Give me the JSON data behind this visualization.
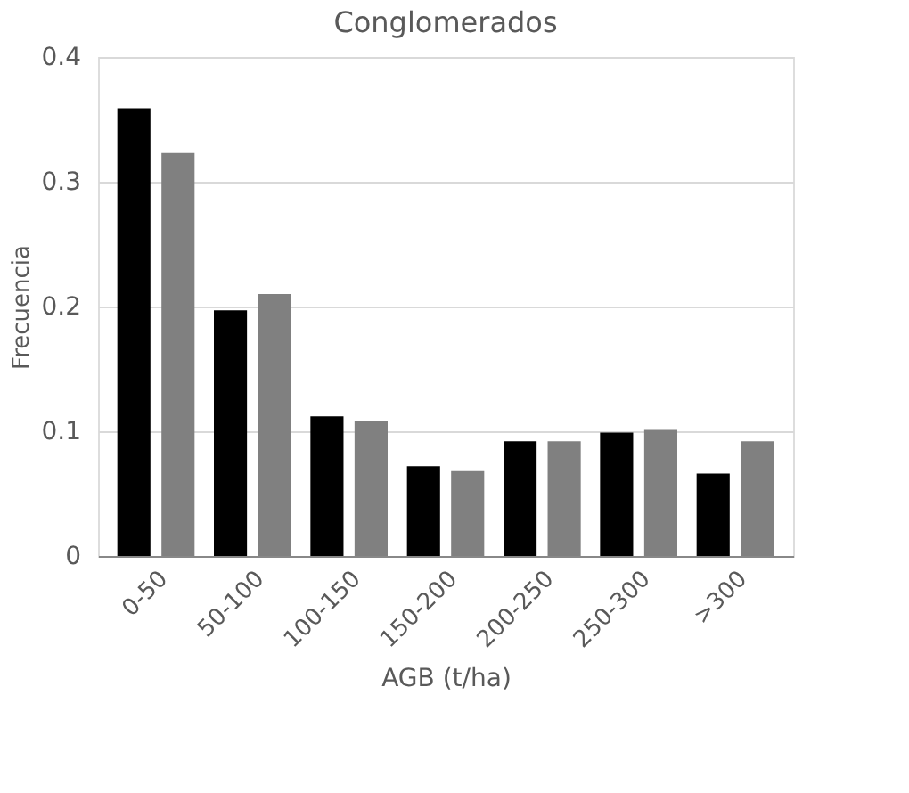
{
  "chart_data": {
    "type": "bar",
    "title": "Conglomerados",
    "xlabel": "AGB (t/ha)",
    "ylabel": "Frecuencia",
    "categories": [
      "0-50",
      "50-100",
      "100-150",
      "150-200",
      "200-250",
      "250-300",
      ">300"
    ],
    "series": [
      {
        "color": "#000000",
        "values": [
          0.359,
          0.197,
          0.112,
          0.072,
          0.092,
          0.099,
          0.066
        ]
      },
      {
        "color": "#808080",
        "values": [
          0.323,
          0.21,
          0.108,
          0.068,
          0.092,
          0.101,
          0.092
        ]
      }
    ],
    "ylim": [
      0,
      0.4
    ],
    "yticks": [
      0,
      0.1,
      0.2,
      0.3,
      0.4
    ],
    "grid": "y",
    "legend": false
  }
}
